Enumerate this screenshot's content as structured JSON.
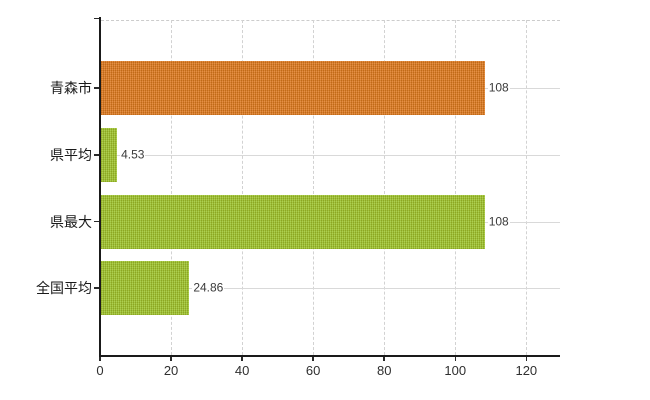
{
  "chart_data": {
    "type": "bar",
    "orientation": "horizontal",
    "title": "",
    "xlabel": "",
    "ylabel": "",
    "categories": [
      "青森市",
      "県平均",
      "県最大",
      "全国平均"
    ],
    "values": [
      108,
      4.53,
      108,
      24.86
    ],
    "value_labels": [
      "108",
      "4.53",
      "108",
      "24.86"
    ],
    "series_colors": [
      "#e0781e",
      "#9cc72c",
      "#9cc72c",
      "#9cc72c"
    ],
    "x_ticks": [
      0,
      20,
      40,
      60,
      80,
      100,
      120
    ],
    "xlim": [
      0,
      129.5
    ],
    "grid": "dashed vertical gridlines at x ticks; solid light horizontal gridlines at category centers; dashed top border",
    "legend": "none",
    "background": "#ffffff"
  },
  "colors": {
    "bar_highlight": "#e0781e",
    "bar_default": "#9cc72c",
    "axis": "#1a1a1a",
    "gridline_horizontal": "#d9d9d9",
    "gridline_vertical": "#d2d2d2",
    "tick_label": "#2f2f2f",
    "category_label": "#1a1a1a",
    "value_label": "#3a3a3a",
    "background": "#ffffff"
  }
}
